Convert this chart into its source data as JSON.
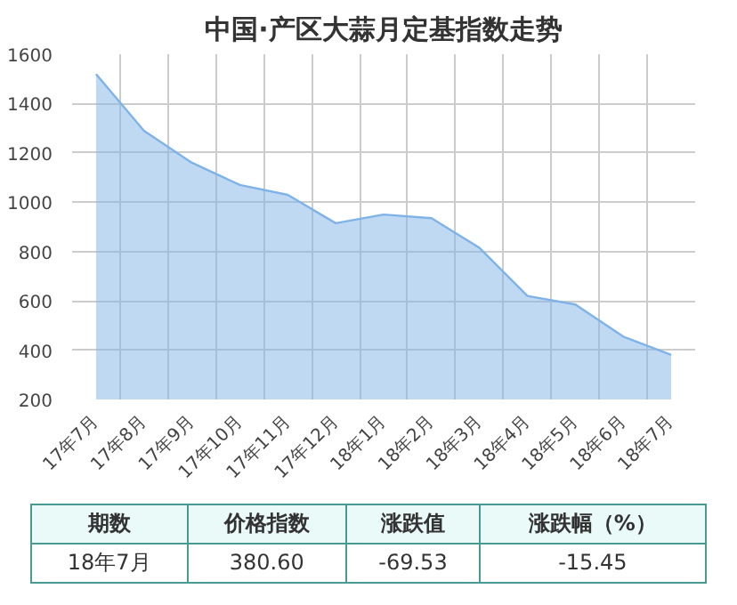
{
  "chart_data": {
    "type": "area",
    "title": "中国·产区大蒜月定基指数走势",
    "categories": [
      "17年7月",
      "17年8月",
      "17年9月",
      "17年10月",
      "17年11月",
      "17年12月",
      "18年1月",
      "18年2月",
      "18年3月",
      "18年4月",
      "18年5月",
      "18年6月",
      "18年7月"
    ],
    "series": [
      {
        "color": "#7fb3e8",
        "values": [
          1520,
          1290,
          1160,
          1070,
          1030,
          915,
          950,
          935,
          815,
          620,
          585,
          455,
          380.6
        ]
      }
    ],
    "ylim": [
      200,
      1600
    ],
    "yticks": [
      200,
      400,
      600,
      800,
      1000,
      1200,
      1400,
      1600
    ],
    "grid": true,
    "annotations": [
      "期数",
      "价格指数",
      "涨跌值",
      "涨跌幅（%）",
      "18年7月",
      "380.60",
      "-69.53",
      "-15.45"
    ]
  }
}
